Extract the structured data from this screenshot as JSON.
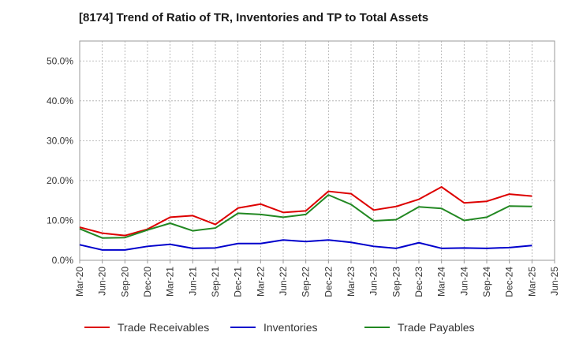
{
  "chart_data": {
    "type": "line",
    "title": "[8174]  Trend of Ratio of TR, Inventories and TP to Total Assets",
    "xlabel": "",
    "ylabel": "",
    "ylim": [
      0,
      55
    ],
    "yticks": [
      0,
      10,
      20,
      30,
      40,
      50
    ],
    "ytick_labels": [
      "0.0%",
      "10.0%",
      "20.0%",
      "30.0%",
      "40.0%",
      "50.0%"
    ],
    "x_tick_labels": [
      "Mar-20",
      "Jun-20",
      "Sep-20",
      "Dec-20",
      "Mar-21",
      "Jun-21",
      "Sep-21",
      "Dec-21",
      "Mar-22",
      "Jun-22",
      "Sep-22",
      "Dec-22",
      "Mar-23",
      "Jun-23",
      "Sep-23",
      "Dec-23",
      "Mar-24",
      "Jun-24",
      "Sep-24",
      "Dec-24",
      "Mar-25",
      "Jun-25"
    ],
    "x": [
      "Mar-20",
      "Jun-20",
      "Sep-20",
      "Dec-20",
      "Mar-21",
      "Jun-21",
      "Sep-21",
      "Dec-21",
      "Mar-22",
      "Jun-22",
      "Sep-22",
      "Dec-22",
      "Mar-23",
      "Jun-23",
      "Sep-23",
      "Dec-23",
      "Mar-24",
      "Jun-24",
      "Sep-24",
      "Dec-24",
      "Mar-25"
    ],
    "grid": true,
    "legend_position": "bottom",
    "series": [
      {
        "name": "Trade Receivables",
        "color": "#dd0000",
        "values": [
          8.3,
          6.8,
          6.2,
          7.8,
          10.8,
          11.2,
          9.0,
          13.1,
          14.1,
          12.0,
          12.4,
          17.3,
          16.7,
          12.6,
          13.5,
          15.3,
          18.4,
          14.4,
          14.8,
          16.6,
          16.1
        ]
      },
      {
        "name": "Inventories",
        "color": "#0000cc",
        "values": [
          3.9,
          2.6,
          2.6,
          3.5,
          4.0,
          3.0,
          3.1,
          4.2,
          4.2,
          5.1,
          4.7,
          5.1,
          4.5,
          3.5,
          3.0,
          4.4,
          3.0,
          3.1,
          3.0,
          3.2,
          3.7
        ]
      },
      {
        "name": "Trade Payables",
        "color": "#228822",
        "values": [
          7.9,
          5.6,
          5.7,
          7.6,
          9.3,
          7.4,
          8.1,
          11.8,
          11.5,
          10.8,
          11.5,
          16.4,
          14.0,
          9.9,
          10.2,
          13.4,
          13.0,
          10.0,
          10.8,
          13.6,
          13.5
        ]
      }
    ]
  }
}
